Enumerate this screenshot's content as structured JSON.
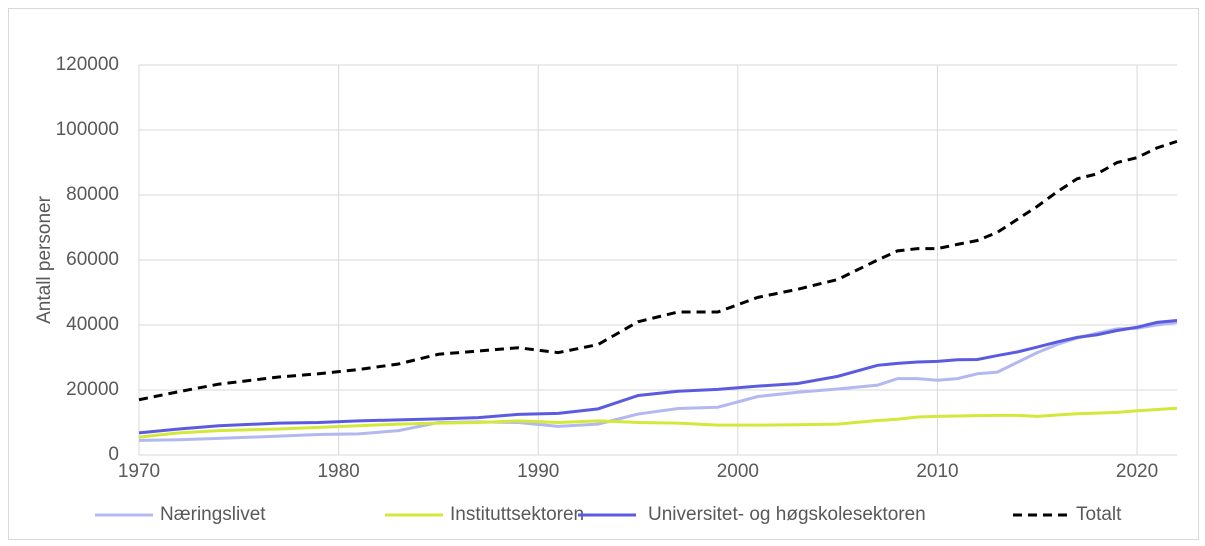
{
  "chart_data": {
    "type": "line",
    "ylabel": "Antall personer",
    "x": [
      1970,
      1972,
      1974,
      1977,
      1979,
      1981,
      1983,
      1985,
      1987,
      1989,
      1991,
      1993,
      1995,
      1997,
      1999,
      2001,
      2003,
      2005,
      2007,
      2008,
      2009,
      2010,
      2011,
      2012,
      2013,
      2014,
      2015,
      2016,
      2017,
      2018,
      2019,
      2020,
      2021,
      2022
    ],
    "series": [
      {
        "name": "Næringslivet",
        "color": "#b4b8f0",
        "dashed": false,
        "values": [
          4500,
          4700,
          5100,
          5800,
          6300,
          6500,
          7500,
          10000,
          10200,
          10000,
          8800,
          9500,
          12600,
          14300,
          14700,
          18000,
          19300,
          20300,
          21500,
          23500,
          23500,
          23000,
          23500,
          25000,
          25500,
          28500,
          31500,
          34000,
          36000,
          37500,
          38800,
          39000,
          40000,
          40800
        ]
      },
      {
        "name": "Instituttsektoren",
        "color": "#d3e83a",
        "dashed": false,
        "values": [
          5500,
          6800,
          7500,
          8000,
          8500,
          9000,
          9500,
          9800,
          10000,
          10500,
          10000,
          10500,
          10000,
          9800,
          9200,
          9200,
          9300,
          9500,
          10600,
          11000,
          11700,
          11900,
          12000,
          12100,
          12200,
          12200,
          11900,
          12300,
          12700,
          12900,
          13100,
          13600,
          14000,
          14400
        ]
      },
      {
        "name": "Universitet- og høgskolesektoren",
        "color": "#5b5be0",
        "dashed": false,
        "values": [
          6800,
          8000,
          9000,
          9800,
          10000,
          10500,
          10800,
          11100,
          11500,
          12500,
          12800,
          14200,
          18300,
          19600,
          20200,
          21200,
          22000,
          24200,
          27600,
          28200,
          28600,
          28800,
          29300,
          29400,
          30600,
          31700,
          33200,
          34800,
          36200,
          37000,
          38300,
          39300,
          40800,
          41400
        ]
      },
      {
        "name": "Totalt",
        "color": "#000000",
        "dashed": true,
        "values": [
          17000,
          19500,
          21800,
          24000,
          25000,
          26300,
          28000,
          31000,
          32000,
          33000,
          31500,
          34000,
          41000,
          44000,
          44000,
          48500,
          51000,
          54000,
          60000,
          62800,
          63500,
          63500,
          64800,
          66000,
          68500,
          72500,
          76500,
          81000,
          85000,
          86500,
          90000,
          91500,
          94500,
          96500
        ]
      }
    ],
    "xlim": [
      1970,
      2022
    ],
    "xticks": [
      1970,
      1980,
      1990,
      2000,
      2010,
      2020
    ],
    "ylim": [
      0,
      120000
    ],
    "yticks": [
      0,
      20000,
      40000,
      60000,
      80000,
      100000,
      120000
    ],
    "grid": true,
    "legend": "bottom"
  }
}
